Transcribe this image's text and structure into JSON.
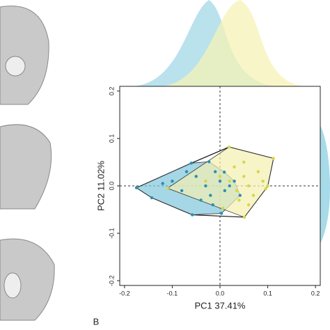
{
  "chart_data": {
    "type": "scatter",
    "panel_label": "B",
    "x_label": "PC1 37.41%",
    "y_label": "PC2 11.02%",
    "xlim": [
      -0.21,
      0.21
    ],
    "ylim": [
      -0.21,
      0.21
    ],
    "xticks": [
      -0.2,
      -0.1,
      {
        "value": 0,
        "label": "0.0"
      },
      0.1,
      0.2
    ],
    "yticks": [
      -0.2,
      -0.1,
      {
        "value": 0,
        "label": "0.0"
      },
      0.1,
      0.2
    ],
    "series": [
      {
        "color": "#2a8fb0",
        "hull_color": "#7fc6dc",
        "x": [
          -0.175,
          -0.06,
          -0.023,
          0.009,
          0.042,
          0.003,
          -0.058,
          -0.143,
          -0.1,
          -0.08,
          -0.05,
          -0.03,
          -0.02,
          -0.01,
          0.0,
          0.01,
          -0.04,
          0.02,
          -0.07,
          -0.12,
          0.03,
          -0.015
        ],
        "y": [
          -0.004,
          0.048,
          0.051,
          0.029,
          -0.02,
          -0.058,
          -0.061,
          -0.025,
          0.01,
          -0.01,
          0.02,
          0.0,
          -0.02,
          0.03,
          0.01,
          -0.01,
          -0.03,
          0.0,
          0.03,
          0.005,
          0.01,
          -0.04
        ]
      },
      {
        "color": "#d8d64a",
        "hull_color": "#f3f0b0",
        "x": [
          0.019,
          0.112,
          0.096,
          0.051,
          0.006,
          -0.11,
          0.03,
          0.05,
          0.06,
          0.07,
          0.04,
          0.02,
          0.08,
          0.09,
          0.0,
          -0.03,
          0.05,
          0.06,
          0.035,
          0.1
        ],
        "y": [
          0.082,
          0.058,
          -0.006,
          -0.066,
          -0.047,
          -0.005,
          0.04,
          0.02,
          0.0,
          -0.02,
          -0.03,
          0.01,
          0.03,
          0.01,
          0.02,
          0.01,
          0.05,
          -0.04,
          -0.01,
          0.0
        ]
      }
    ]
  }
}
